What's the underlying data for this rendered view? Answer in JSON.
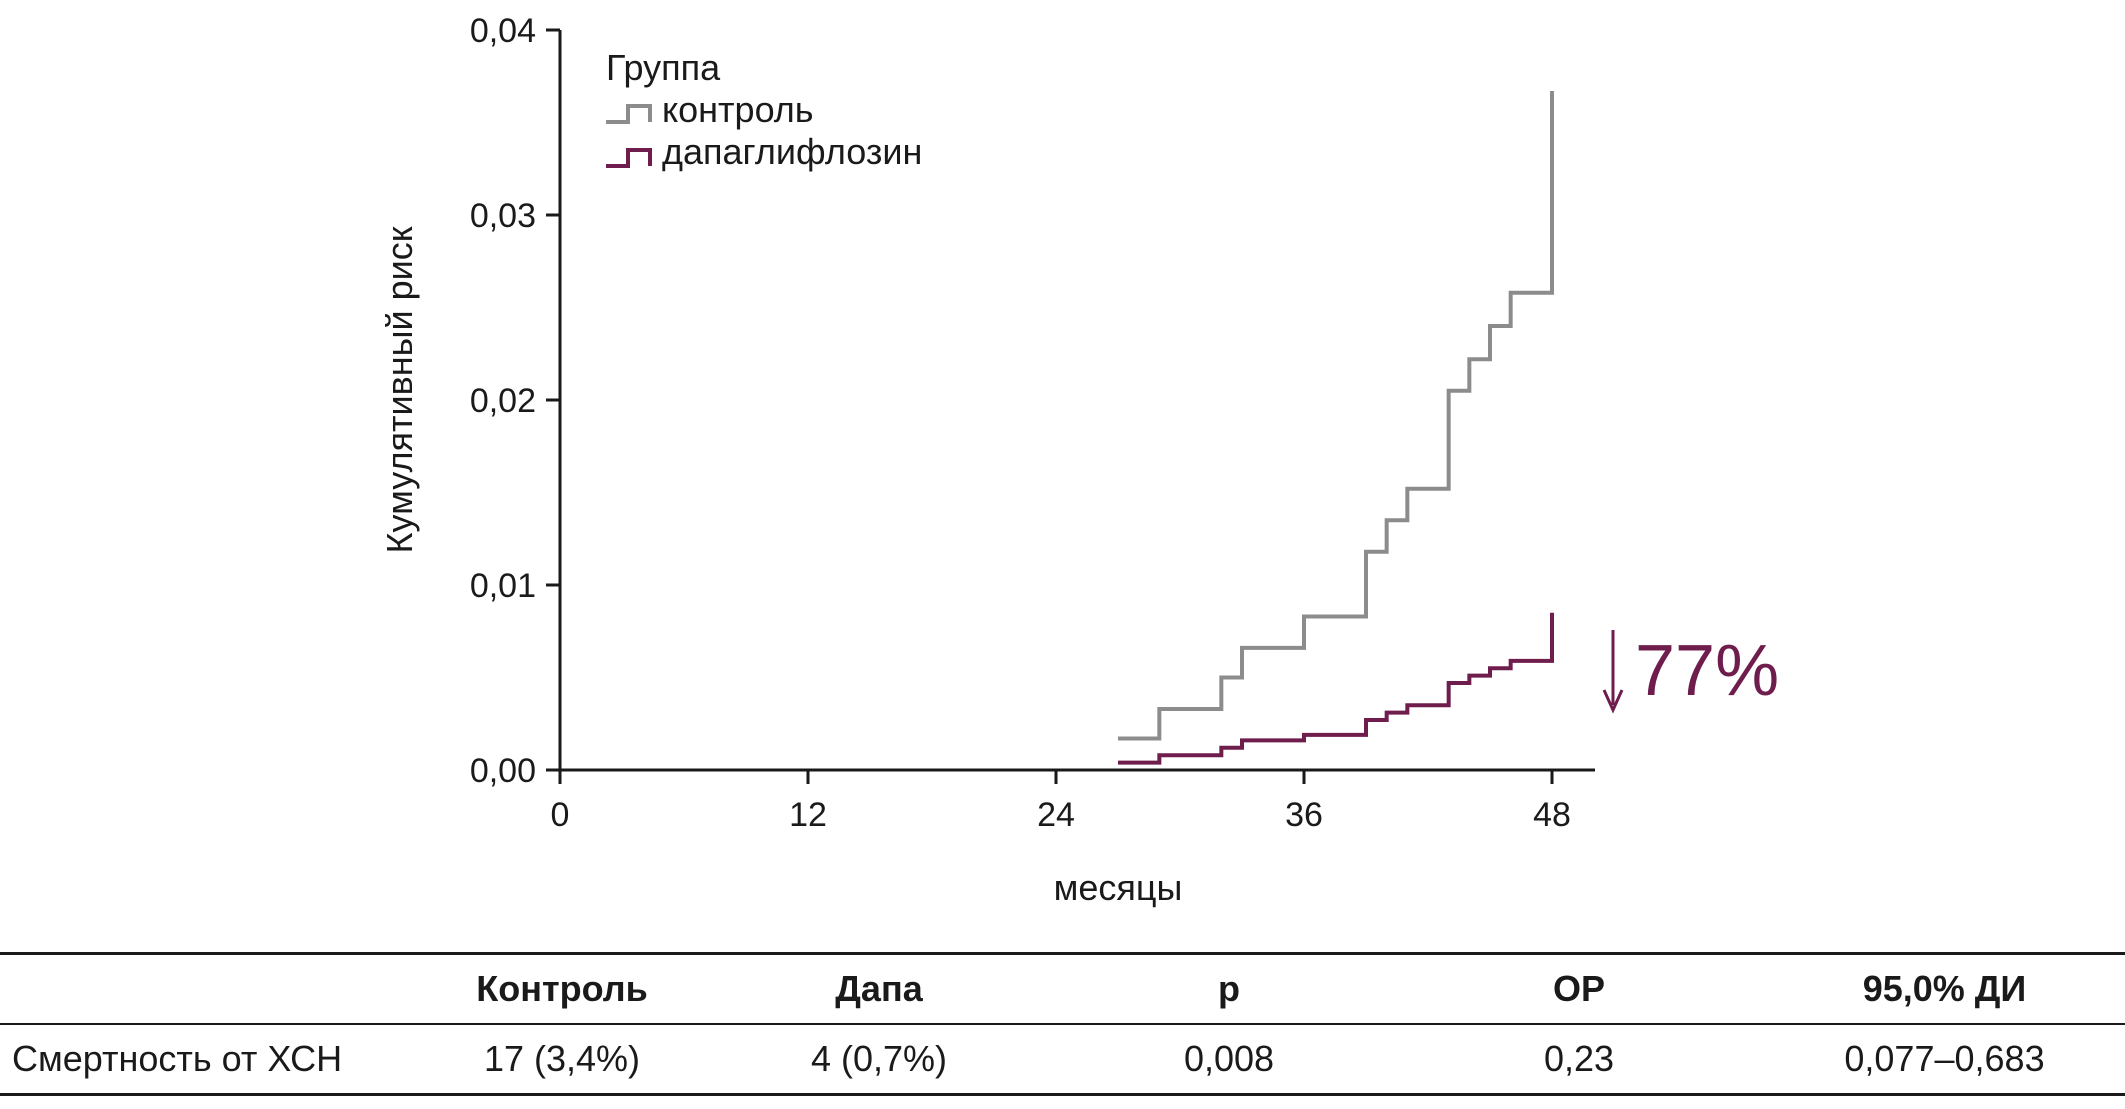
{
  "colors": {
    "control": "#8c8c8c",
    "dapa": "#6e1d4c",
    "axis": "#1a1a1a"
  },
  "chart_data": {
    "type": "line",
    "step": true,
    "title": "",
    "xlabel": "месяцы",
    "ylabel": "Кумулятивный риск",
    "xlim": [
      0,
      50
    ],
    "ylim": [
      0,
      0.04
    ],
    "x_ticks": [
      0,
      12,
      24,
      36,
      48
    ],
    "x_tick_labels": [
      "0",
      "12",
      "24",
      "36",
      "48"
    ],
    "y_ticks": [
      0,
      0.01,
      0.02,
      0.03,
      0.04
    ],
    "y_tick_labels": [
      "0,00",
      "0,01",
      "0,02",
      "0,03",
      "0,04"
    ],
    "legend_title": "Группа",
    "legend_position": "top-left",
    "series": [
      {
        "name": "контроль",
        "color_key": "control",
        "x": [
          27,
          29,
          32,
          33,
          36,
          39,
          40,
          41,
          43,
          44,
          45,
          46,
          47,
          48
        ],
        "y": [
          0.0017,
          0.0033,
          0.005,
          0.0066,
          0.0083,
          0.0118,
          0.0135,
          0.0152,
          0.0205,
          0.0222,
          0.024,
          0.0258,
          0.0258,
          0.0367
        ]
      },
      {
        "name": "дапаглифлозин",
        "color_key": "dapa",
        "x": [
          27,
          29,
          32,
          33,
          36,
          39,
          40,
          41,
          43,
          44,
          45,
          46,
          47,
          48
        ],
        "y": [
          0.0004,
          0.0008,
          0.0012,
          0.0016,
          0.0019,
          0.0027,
          0.0031,
          0.0035,
          0.0047,
          0.0051,
          0.0055,
          0.0059,
          0.0059,
          0.0085
        ]
      }
    ],
    "annotation": {
      "text": "77%",
      "arrow": "down",
      "color_key": "dapa"
    }
  },
  "table": {
    "headers": [
      "",
      "Контроль",
      "Дапа",
      "p",
      "ОР",
      "95,0% ДИ"
    ],
    "rows": [
      [
        "Смертность от ХСН",
        "17 (3,4%)",
        "4 (0,7%)",
        "0,008",
        "0,23",
        "0,077–0,683"
      ]
    ]
  }
}
